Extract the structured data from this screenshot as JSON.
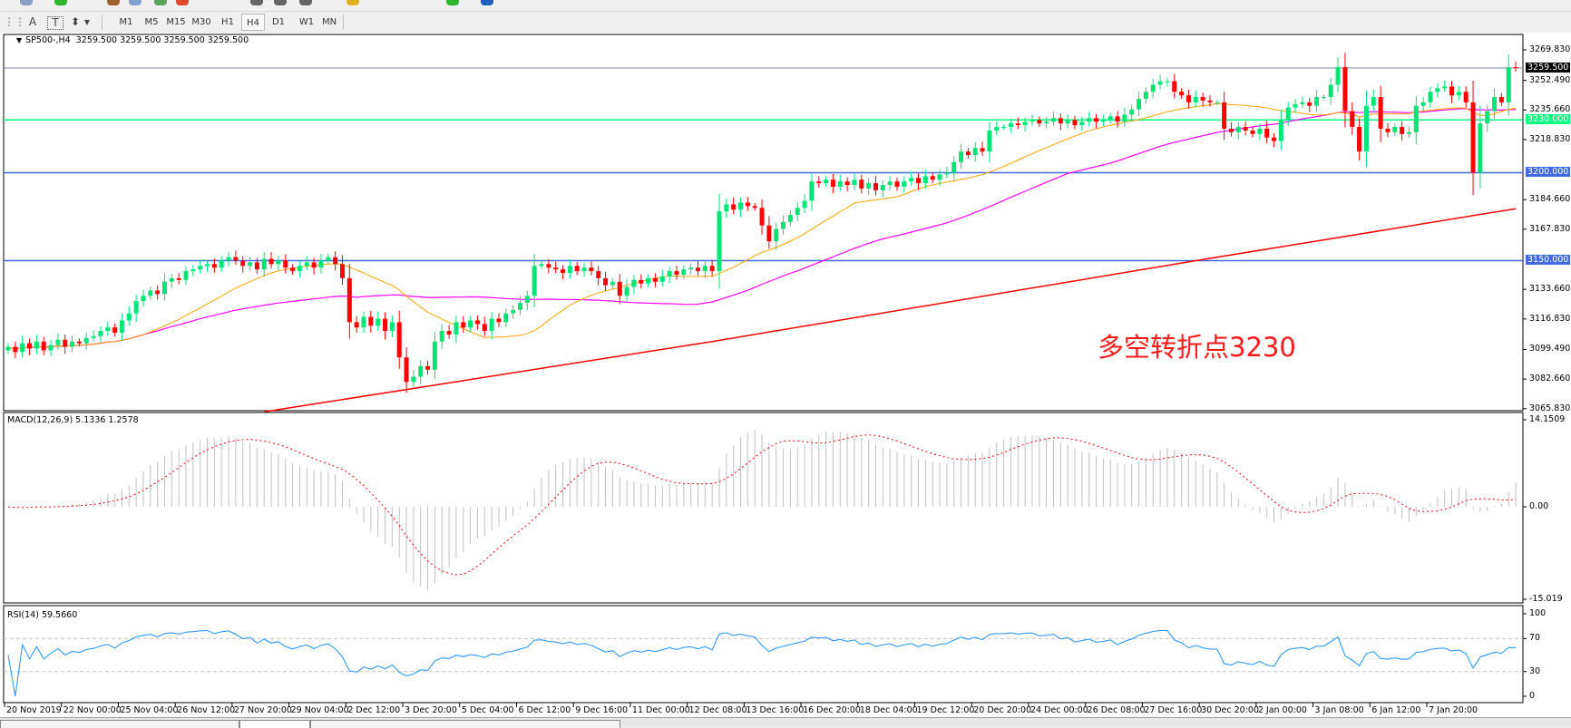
{
  "toolbar": {
    "tools": [
      {
        "icon": "grid-icon",
        "label": ""
      },
      {
        "icon": "text-icon",
        "label": "A"
      },
      {
        "icon": "text-label-icon",
        "label": "T"
      },
      {
        "icon": "arrows-icon",
        "label": "⬍"
      }
    ],
    "timeframes": [
      "M1",
      "M5",
      "M15",
      "M30",
      "H1",
      "H4",
      "D1",
      "W1",
      "MN"
    ],
    "active_timeframe": "H4"
  },
  "chart_header": {
    "symbol": "SP500-,H4",
    "ohlc": "3259.500 3259.500 3259.500 3259.500"
  },
  "annotation": "多空转折点3230",
  "chart_data": {
    "type": "candlestick",
    "symbol": "SP500-",
    "timeframe": "H4",
    "colors": {
      "bull": "#00e676",
      "bear": "#ff0000",
      "ma_fast": "#ffa500",
      "ma_mid": "#ff00ff",
      "ma_slow": "#ff0000",
      "macd_hist": "#c0c0c0",
      "macd_signal": "#ff0000",
      "rsi": "#1e90ff"
    },
    "closes": [
      3101,
      3098,
      3103,
      3100,
      3104,
      3099,
      3102,
      3105,
      3101,
      3104,
      3103,
      3106,
      3107,
      3110,
      3112,
      3109,
      3116,
      3120,
      3127,
      3130,
      3133,
      3131,
      3138,
      3140,
      3139,
      3144,
      3145,
      3147,
      3148,
      3146,
      3150,
      3152,
      3150,
      3147,
      3149,
      3145,
      3151,
      3148,
      3150,
      3146,
      3144,
      3147,
      3149,
      3146,
      3150,
      3152,
      3148,
      3140,
      3115,
      3112,
      3118,
      3113,
      3117,
      3110,
      3115,
      3095,
      3081,
      3084,
      3090,
      3088,
      3104,
      3110,
      3108,
      3115,
      3112,
      3116,
      3114,
      3110,
      3117,
      3115,
      3120,
      3122,
      3126,
      3130,
      3147,
      3148,
      3146,
      3145,
      3143,
      3147,
      3144,
      3146,
      3144,
      3140,
      3136,
      3138,
      3130,
      3135,
      3139,
      3137,
      3140,
      3138,
      3141,
      3144,
      3142,
      3145,
      3146,
      3144,
      3147,
      3144,
      3178,
      3182,
      3179,
      3183,
      3181,
      3180,
      3170,
      3161,
      3168,
      3172,
      3176,
      3180,
      3184,
      3195,
      3194,
      3196,
      3192,
      3195,
      3193,
      3196,
      3191,
      3194,
      3190,
      3193,
      3195,
      3192,
      3195,
      3197,
      3194,
      3198,
      3196,
      3199,
      3200,
      3206,
      3212,
      3210,
      3214,
      3212,
      3224,
      3226,
      3226,
      3228,
      3227,
      3229,
      3230,
      3228,
      3229,
      3231,
      3228,
      3230,
      3227,
      3229,
      3231,
      3229,
      3230,
      3232,
      3229,
      3233,
      3236,
      3242,
      3246,
      3250,
      3252,
      3252,
      3246,
      3244,
      3240,
      3243,
      3241,
      3240,
      3240,
      3225,
      3223,
      3226,
      3224,
      3222,
      3225,
      3220,
      3218,
      3230,
      3237,
      3239,
      3240,
      3238,
      3243,
      3243,
      3250,
      3260,
      3235,
      3226,
      3212,
      3238,
      3243,
      3225,
      3223,
      3226,
      3222,
      3223,
      3238,
      3240,
      3246,
      3248,
      3249,
      3244,
      3246,
      3240,
      3200,
      3228,
      3235,
      3243,
      3240,
      3260,
      3259.5
    ],
    "ma_slow_points": [
      [
        36,
        3064
      ],
      [
        99,
        3104
      ],
      [
        167,
        3150
      ],
      [
        212,
        3179.5
      ]
    ],
    "price_axis": {
      "ticks": [
        "3269.830",
        "3252.490",
        "3235.660",
        "3218.830",
        "3184.660",
        "3167.830",
        "3133.660",
        "3116.830",
        "3099.490",
        "3082.660",
        "3065.830"
      ],
      "range": [
        3065.83,
        3269.83
      ]
    },
    "horizontal_lines": [
      {
        "value": 3259.5,
        "label": "3259.500",
        "color": "#778899",
        "label_bg": "#000000",
        "label_fg": "#ffffff"
      },
      {
        "value": 3230,
        "label": "3230.000",
        "color": "#00ff7f",
        "label_bg": "#00ff7f",
        "label_fg": "#ffffff"
      },
      {
        "value": 3200,
        "label": "3200.000",
        "color": "#4169e1",
        "label_bg": "#4169e1",
        "label_fg": "#ffffff"
      },
      {
        "value": 3150,
        "label": "3150.000",
        "color": "#4169e1",
        "label_bg": "#4169e1",
        "label_fg": "#ffffff"
      }
    ],
    "time_axis": {
      "ticks": [
        "20 Nov 2019",
        "22 Nov 00:00",
        "25 Nov 04:00",
        "26 Nov 12:00",
        "27 Nov 20:00",
        "29 Nov 04:00",
        "2 Dec 12:00",
        "3 Dec 20:00",
        "5 Dec 04:00",
        "6 Dec 12:00",
        "9 Dec 16:00",
        "11 Dec 00:00",
        "12 Dec 08:00",
        "13 Dec 16:00",
        "16 Dec 20:00",
        "18 Dec 04:00",
        "19 Dec 12:00",
        "20 Dec 20:00",
        "24 Dec 00:00",
        "26 Dec 08:00",
        "27 Dec 16:00",
        "30 Dec 20:00",
        "2 Jan 00:00",
        "3 Jan 08:00",
        "6 Jan 12:00",
        "7 Jan 20:00"
      ]
    },
    "macd": {
      "label": "MACD(12,26,9) 5.1336 1.2578",
      "axis_ticks": [
        "14.1509",
        "0.00",
        "-15.019"
      ],
      "range": [
        -15.019,
        14.1509
      ]
    },
    "rsi": {
      "label": "RSI(14) 59.5660",
      "axis_ticks": [
        "100",
        "70",
        "30",
        "0"
      ],
      "levels": [
        70,
        30
      ],
      "range": [
        0,
        100
      ]
    }
  }
}
